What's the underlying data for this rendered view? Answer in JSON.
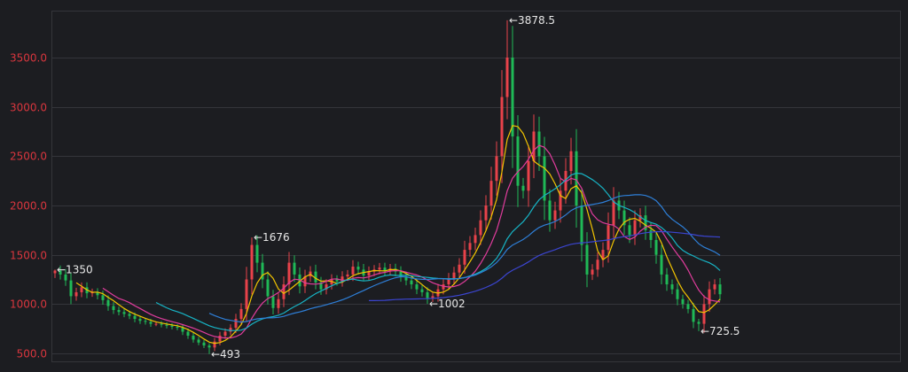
{
  "chart_data": {
    "type": "candlestick",
    "title": "",
    "xlabel": "",
    "ylabel": "",
    "ylim": [
      460,
      3900
    ],
    "yticks": [
      "500.0",
      "1000.0",
      "1500.0",
      "2000.0",
      "2500.0",
      "3000.0",
      "3500.0"
    ],
    "grid": true,
    "colors": {
      "background": "#1c1d21",
      "grid": "#34353a",
      "axis_label": "#d9363e",
      "up": "#e8424a",
      "down": "#1fb956",
      "annotation": "#e6e6e6"
    },
    "moving_averages": [
      {
        "period": 5,
        "color": "#f2c400"
      },
      {
        "period": 10,
        "color": "#e03c9c"
      },
      {
        "period": 20,
        "color": "#17b3c4"
      },
      {
        "period": 30,
        "color": "#2e7fd8"
      },
      {
        "period": 60,
        "color": "#3b45d0"
      }
    ],
    "close": [
      1340,
      1300,
      1240,
      1080,
      1120,
      1170,
      1110,
      1120,
      1090,
      1040,
      980,
      940,
      920,
      900,
      880,
      850,
      830,
      820,
      800,
      800,
      790,
      780,
      770,
      760,
      720,
      680,
      640,
      610,
      580,
      560,
      620,
      680,
      720,
      760,
      850,
      950,
      1250,
      1600,
      1420,
      1250,
      1080,
      960,
      1050,
      1200,
      1420,
      1300,
      1180,
      1280,
      1330,
      1220,
      1150,
      1200,
      1250,
      1230,
      1280,
      1300,
      1380,
      1350,
      1290,
      1330,
      1350,
      1370,
      1340,
      1360,
      1330,
      1280,
      1240,
      1200,
      1150,
      1120,
      1060,
      1080,
      1150,
      1200,
      1260,
      1320,
      1400,
      1550,
      1620,
      1700,
      1850,
      2000,
      2250,
      2500,
      3100,
      3500,
      2700,
      2200,
      2150,
      2450,
      2750,
      2500,
      2050,
      1850,
      1950,
      2150,
      2350,
      2550,
      2000,
      1600,
      1300,
      1350,
      1450,
      1550,
      1800,
      2050,
      1950,
      1800,
      1700,
      1850,
      1900,
      1750,
      1650,
      1500,
      1300,
      1200,
      1150,
      1050,
      1000,
      950,
      820,
      800,
      1000,
      1150,
      1200,
      1100
    ],
    "annotations": [
      {
        "index": 0,
        "label": "←1350",
        "value": 1350
      },
      {
        "index": 37,
        "label": "←1676",
        "value": 1676
      },
      {
        "index": 29,
        "label": "←493",
        "value": 493
      },
      {
        "index": 70,
        "label": "←1002",
        "value": 1002
      },
      {
        "index": 85,
        "label": "←3878.5",
        "value": 3878.5
      },
      {
        "index": 121,
        "label": "←725.5",
        "value": 725.5
      }
    ]
  }
}
